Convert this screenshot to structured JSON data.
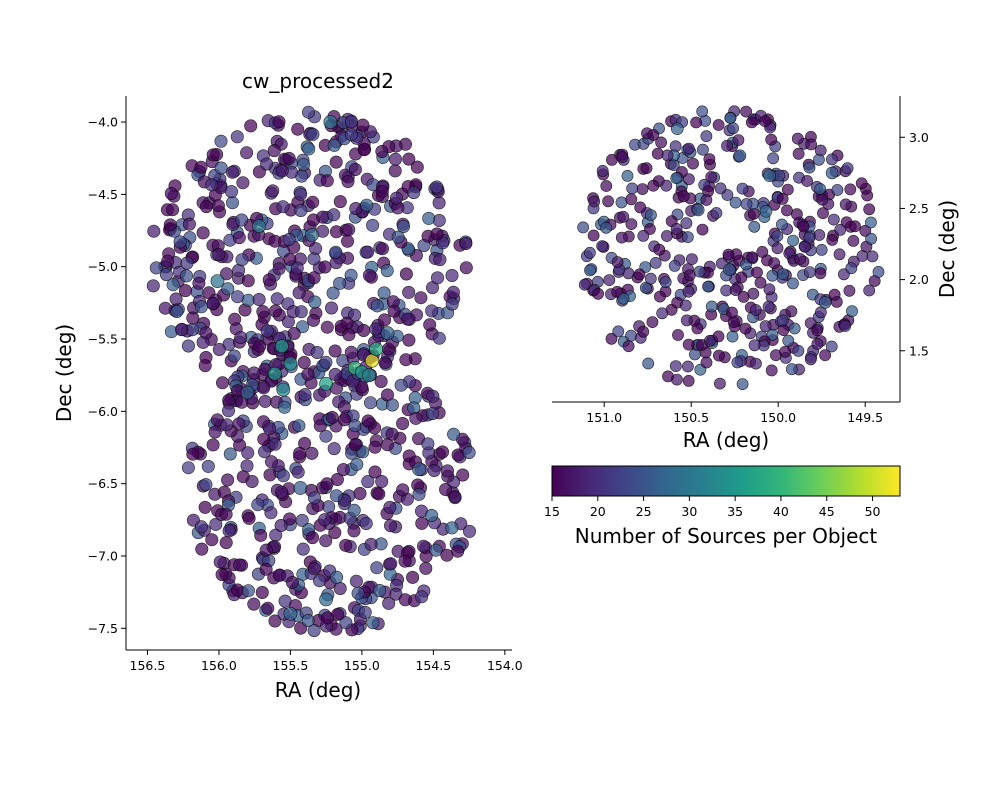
{
  "chart_data": [
    {
      "type": "scatter",
      "title": "cw_processed2",
      "xlabel": "RA (deg)",
      "ylabel": "Dec (deg)",
      "xlim": [
        156.65,
        153.95
      ],
      "ylim": [
        -7.65,
        -3.82
      ],
      "xticks": [
        156.5,
        156.0,
        155.5,
        155.0,
        154.5,
        154.0
      ],
      "xtick_labels": [
        "156.5",
        "156.0",
        "155.5",
        "155.0",
        "154.5",
        "154.0"
      ],
      "yticks": [
        -4.0,
        -4.5,
        -5.0,
        -5.5,
        -6.0,
        -6.5,
        -7.0,
        -7.5
      ],
      "ytick_labels": [
        "−4.0",
        "−4.5",
        "−5.0",
        "−5.5",
        "−6.0",
        "−6.5",
        "−7.0",
        "−7.5"
      ],
      "grid": false,
      "color_by": "Number of Sources per Object",
      "points": [
        {
          "x": 154.93,
          "y": -5.65,
          "c": 52
        },
        {
          "x": 155.05,
          "y": -5.7,
          "c": 40
        },
        {
          "x": 154.9,
          "y": -5.57,
          "c": 38
        },
        {
          "x": 155.56,
          "y": -5.55,
          "c": 36
        },
        {
          "x": 155.25,
          "y": -5.81,
          "c": 36
        },
        {
          "x": 155.61,
          "y": -5.74,
          "c": 35
        },
        {
          "x": 155.5,
          "y": -5.67,
          "c": 33
        },
        {
          "x": 155.0,
          "y": -5.73,
          "c": 34
        },
        {
          "x": 155.55,
          "y": -5.85,
          "c": 33
        },
        {
          "x": 154.95,
          "y": -5.75,
          "c": 33
        },
        {
          "x": 155.22,
          "y": -4.0,
          "c": 30
        },
        {
          "x": 155.72,
          "y": -4.72,
          "c": 30
        },
        {
          "x": 156.01,
          "y": -5.1,
          "c": 29
        },
        {
          "x": 155.35,
          "y": -4.78,
          "c": 28
        },
        {
          "x": 155.8,
          "y": -5.87,
          "c": 27
        },
        {
          "x": 155.25,
          "y": -7.3,
          "c": 28
        },
        {
          "x": 155.5,
          "y": -7.4,
          "c": 27
        },
        {
          "x": 154.82,
          "y": -5.46,
          "c": 27
        },
        {
          "x": 154.6,
          "y": -6.4,
          "c": 26
        },
        {
          "x": 155.43,
          "y": -6.53,
          "c": 26
        }
      ]
    },
    {
      "type": "scatter",
      "xlabel": "RA (deg)",
      "ylabel": "Dec (deg)",
      "xlim": [
        151.3,
        149.3
      ],
      "ylim": [
        1.14,
        3.29
      ],
      "xticks": [
        151.0,
        150.5,
        150.0,
        149.5
      ],
      "xtick_labels": [
        "151.0",
        "150.5",
        "150.0",
        "149.5"
      ],
      "yticks": [
        1.5,
        2.0,
        2.5,
        3.0
      ],
      "ytick_labels": [
        "1.5",
        "2.0",
        "2.5",
        "3.0"
      ],
      "grid": false,
      "color_by": "Number of Sources per Object",
      "points": [
        {
          "x": 150.05,
          "y": 2.73,
          "c": 28
        },
        {
          "x": 150.22,
          "y": 2.87,
          "c": 27
        },
        {
          "x": 150.58,
          "y": 3.06,
          "c": 27
        },
        {
          "x": 149.69,
          "y": 2.75,
          "c": 26
        },
        {
          "x": 150.07,
          "y": 2.48,
          "c": 27
        },
        {
          "x": 149.73,
          "y": 1.84,
          "c": 26
        },
        {
          "x": 150.46,
          "y": 2.49,
          "c": 26
        },
        {
          "x": 150.28,
          "y": 2.07,
          "c": 26
        }
      ]
    }
  ],
  "colorbar": {
    "label": "Number of Sources per Object",
    "min": 15,
    "max": 53,
    "ticks": [
      15,
      20,
      25,
      30,
      35,
      40,
      45,
      50
    ],
    "tick_labels": [
      "15",
      "20",
      "25",
      "30",
      "35",
      "40",
      "45",
      "50"
    ],
    "colormap": "viridis",
    "stops": [
      "#440154",
      "#482878",
      "#3e4989",
      "#31688e",
      "#26828e",
      "#1f9e89",
      "#35b779",
      "#6ece58",
      "#b5de2b",
      "#fde725"
    ]
  },
  "marker_edge_color": "#000000",
  "background_color": "#ffffff"
}
